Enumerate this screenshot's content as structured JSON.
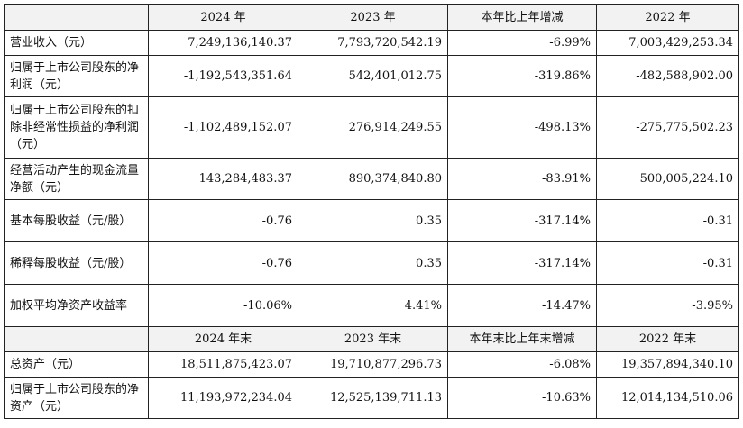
{
  "header_1": [
    "",
    "2024 年",
    "2023 年",
    "本年比上年增减",
    "2022 年"
  ],
  "rows_1": [
    {
      "label": "营业收入（元）",
      "values": [
        "7,249,136,140.37",
        "7,793,720,542.19",
        "-6.99%",
        "7,003,429,253.34"
      ]
    },
    {
      "label": "归属于上市公司股东的净利润（元）",
      "values": [
        "-1,192,543,351.64",
        "542,401,012.75",
        "-319.86%",
        "-482,588,902.00"
      ]
    },
    {
      "label": "归属于上市公司股东的扣除非经常性损益的净利润（元）",
      "values": [
        "-1,102,489,152.07",
        "276,914,249.55",
        "-498.13%",
        "-275,775,502.23"
      ]
    },
    {
      "label": "经营活动产生的现金流量净额（元）",
      "values": [
        "143,284,483.37",
        "890,374,840.80",
        "-83.91%",
        "500,005,224.10"
      ]
    },
    {
      "label": "基本每股收益（元/股）",
      "values": [
        "-0.76",
        "0.35",
        "-317.14%",
        "-0.31"
      ]
    },
    {
      "label": "稀释每股收益（元/股）",
      "values": [
        "-0.76",
        "0.35",
        "-317.14%",
        "-0.31"
      ]
    },
    {
      "label": "加权平均净资产收益率",
      "values": [
        "-10.06%",
        "4.41%",
        "-14.47%",
        "-3.95%"
      ]
    }
  ],
  "header_2": [
    "",
    "2024 年末",
    "2023 年末",
    "本年末比上年末增减",
    "2022 年末"
  ],
  "rows_2": [
    {
      "label": "总资产（元）",
      "values": [
        "18,511,875,423.07",
        "19,710,877,296.73",
        "-6.08%",
        "19,357,894,340.10"
      ]
    },
    {
      "label": "归属于上市公司股东的净资产（元）",
      "values": [
        "11,193,972,234.04",
        "12,525,139,711.13",
        "-10.63%",
        "12,014,134,510.06"
      ]
    }
  ]
}
